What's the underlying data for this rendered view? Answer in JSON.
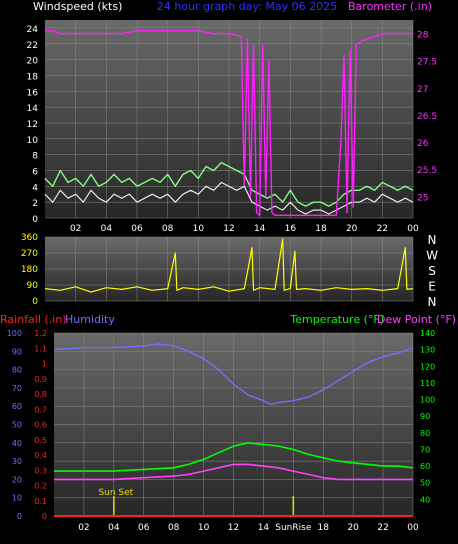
{
  "header": {
    "left_title": "Windspeed (kts)",
    "center_title": "24 hour graph day:  May 06 2025",
    "right_title": "Barometer (.in)"
  },
  "colors": {
    "background": "#000000",
    "plot_bg_top": "#606060",
    "plot_bg_bottom": "#202020",
    "wind_speed": "#e8e8e8",
    "wind_gust": "#80ff80",
    "barometer": "#ff20ff",
    "wind_dir": "#ffff00",
    "rainfall": "#ff2020",
    "humidity": "#7070ff",
    "temperature": "#00ff00",
    "dew_point": "#ff40ff",
    "sun_marker": "#e0e000"
  },
  "chart_data": [
    {
      "type": "line",
      "name": "wind-barometer",
      "x_ticks": [
        "02",
        "04",
        "06",
        "08",
        "10",
        "12",
        "14",
        "16",
        "18",
        "20",
        "22",
        "00"
      ],
      "left_axis": {
        "label": "Windspeed (kts)",
        "ticks": [
          0,
          2,
          4,
          6,
          8,
          10,
          12,
          14,
          16,
          18,
          20,
          22,
          24
        ],
        "ylim": [
          0,
          25
        ]
      },
      "right_axis": {
        "label": "Barometer (.in)",
        "ticks": [
          "25",
          "25.5",
          "26",
          "26.5",
          "27",
          "27.5",
          "28"
        ],
        "ylim": [
          24.6,
          28.25
        ]
      },
      "series": [
        {
          "key": "wind_speed",
          "points": [
            [
              0,
              3
            ],
            [
              0.5,
              2
            ],
            [
              1,
              3.5
            ],
            [
              1.5,
              2.5
            ],
            [
              2,
              3
            ],
            [
              2.5,
              2
            ],
            [
              3,
              3.5
            ],
            [
              3.5,
              2.5
            ],
            [
              4,
              2
            ],
            [
              4.5,
              3
            ],
            [
              5,
              2.5
            ],
            [
              5.5,
              3
            ],
            [
              6,
              2
            ],
            [
              6.5,
              2.5
            ],
            [
              7,
              3
            ],
            [
              7.5,
              2.5
            ],
            [
              8,
              3
            ],
            [
              8.5,
              2
            ],
            [
              9,
              3
            ],
            [
              9.5,
              3.5
            ],
            [
              10,
              3
            ],
            [
              10.5,
              4
            ],
            [
              11,
              3.5
            ],
            [
              11.5,
              4.5
            ],
            [
              12,
              4
            ],
            [
              12.5,
              3.5
            ],
            [
              13,
              4
            ],
            [
              13.5,
              2
            ],
            [
              14,
              1.5
            ],
            [
              14.5,
              1
            ],
            [
              15,
              1.5
            ],
            [
              15.5,
              1
            ],
            [
              16,
              2
            ],
            [
              16.5,
              1
            ],
            [
              17,
              0.5
            ],
            [
              17.5,
              1
            ],
            [
              18,
              1
            ],
            [
              18.5,
              0.5
            ],
            [
              19,
              1
            ],
            [
              19.5,
              1.5
            ],
            [
              20,
              2
            ],
            [
              20.5,
              2
            ],
            [
              21,
              2.5
            ],
            [
              21.5,
              2
            ],
            [
              22,
              3
            ],
            [
              22.5,
              2.5
            ],
            [
              23,
              2
            ],
            [
              23.5,
              2.5
            ],
            [
              24,
              2
            ]
          ]
        },
        {
          "key": "wind_gust",
          "points": [
            [
              0,
              5
            ],
            [
              0.5,
              4
            ],
            [
              1,
              6
            ],
            [
              1.5,
              4.5
            ],
            [
              2,
              5
            ],
            [
              2.5,
              4
            ],
            [
              3,
              5.5
            ],
            [
              3.5,
              4
            ],
            [
              4,
              4.5
            ],
            [
              4.5,
              5.5
            ],
            [
              5,
              4.5
            ],
            [
              5.5,
              5
            ],
            [
              6,
              4
            ],
            [
              6.5,
              4.5
            ],
            [
              7,
              5
            ],
            [
              7.5,
              4.5
            ],
            [
              8,
              5.5
            ],
            [
              8.5,
              4
            ],
            [
              9,
              5.5
            ],
            [
              9.5,
              6
            ],
            [
              10,
              5
            ],
            [
              10.5,
              6.5
            ],
            [
              11,
              6
            ],
            [
              11.5,
              7
            ],
            [
              12,
              6.5
            ],
            [
              12.5,
              6
            ],
            [
              13,
              5.5
            ],
            [
              13.5,
              3.5
            ],
            [
              14,
              3
            ],
            [
              14.5,
              2.5
            ],
            [
              15,
              3
            ],
            [
              15.5,
              2
            ],
            [
              16,
              3.5
            ],
            [
              16.5,
              2
            ],
            [
              17,
              1.5
            ],
            [
              17.5,
              2
            ],
            [
              18,
              2
            ],
            [
              18.5,
              1.5
            ],
            [
              19,
              2
            ],
            [
              19.5,
              3
            ],
            [
              20,
              3.5
            ],
            [
              20.5,
              3.5
            ],
            [
              21,
              4
            ],
            [
              21.5,
              3.5
            ],
            [
              22,
              4.5
            ],
            [
              22.5,
              4
            ],
            [
              23,
              3.5
            ],
            [
              23.5,
              4
            ],
            [
              24,
              3.5
            ]
          ]
        },
        {
          "key": "barometer",
          "points": [
            [
              0,
              28.05
            ],
            [
              0.5,
              28.05
            ],
            [
              1,
              28.0
            ],
            [
              2,
              28.0
            ],
            [
              3,
              28.0
            ],
            [
              4,
              28.0
            ],
            [
              5,
              28.0
            ],
            [
              6,
              28.05
            ],
            [
              7,
              28.05
            ],
            [
              8,
              28.05
            ],
            [
              9,
              28.05
            ],
            [
              10,
              28.05
            ],
            [
              11,
              28.0
            ],
            [
              12,
              28.0
            ],
            [
              12.8,
              27.95
            ],
            [
              13,
              25.2
            ],
            [
              13.2,
              27.9
            ],
            [
              13.4,
              25.0
            ],
            [
              13.6,
              27.8
            ],
            [
              13.8,
              24.7
            ],
            [
              14,
              24.65
            ],
            [
              14.2,
              27.8
            ],
            [
              14.4,
              25.0
            ],
            [
              14.6,
              27.5
            ],
            [
              14.8,
              24.7
            ],
            [
              15,
              24.65
            ],
            [
              19,
              24.65
            ],
            [
              19.3,
              26.0
            ],
            [
              19.5,
              27.6
            ],
            [
              19.7,
              24.7
            ],
            [
              19.9,
              27.7
            ],
            [
              20.1,
              24.8
            ],
            [
              20.3,
              27.8
            ],
            [
              20.6,
              27.85
            ],
            [
              21,
              27.9
            ],
            [
              21.5,
              27.95
            ],
            [
              22,
              28.0
            ],
            [
              23,
              28.0
            ],
            [
              24,
              28.0
            ]
          ]
        }
      ]
    },
    {
      "type": "line",
      "name": "wind-direction",
      "x_ticks": [
        "02",
        "04",
        "06",
        "08",
        "10",
        "12",
        "14",
        "16",
        "18",
        "20",
        "22",
        "00"
      ],
      "left_axis": {
        "ticks": [
          0,
          90,
          180,
          270,
          360
        ],
        "ylim": [
          0,
          360
        ]
      },
      "right_axis": {
        "compass": [
          "N",
          "W",
          "S",
          "E",
          "N"
        ]
      },
      "series": [
        {
          "key": "wind_dir",
          "points": [
            [
              0,
              70
            ],
            [
              1,
              60
            ],
            [
              2,
              80
            ],
            [
              3,
              50
            ],
            [
              4,
              75
            ],
            [
              5,
              65
            ],
            [
              6,
              80
            ],
            [
              7,
              60
            ],
            [
              8,
              70
            ],
            [
              8.5,
              270
            ],
            [
              8.6,
              60
            ],
            [
              9,
              75
            ],
            [
              10,
              65
            ],
            [
              11,
              80
            ],
            [
              12,
              55
            ],
            [
              13,
              70
            ],
            [
              13.5,
              300
            ],
            [
              13.6,
              60
            ],
            [
              14,
              75
            ],
            [
              15,
              65
            ],
            [
              15.5,
              350
            ],
            [
              15.6,
              60
            ],
            [
              16,
              70
            ],
            [
              16.3,
              280
            ],
            [
              16.4,
              65
            ],
            [
              17,
              70
            ],
            [
              18,
              60
            ],
            [
              19,
              75
            ],
            [
              20,
              65
            ],
            [
              21,
              70
            ],
            [
              22,
              60
            ],
            [
              23,
              70
            ],
            [
              23.5,
              300
            ],
            [
              23.6,
              65
            ],
            [
              24,
              70
            ]
          ]
        }
      ]
    },
    {
      "type": "line",
      "name": "rain-humidity-temperature",
      "x_ticks": [
        "02",
        "04",
        "06",
        "08",
        "10",
        "12",
        "14",
        "SunRise",
        "18",
        "20",
        "22",
        "00"
      ],
      "left_labels": {
        "rainfall": "Rainfall (.in)",
        "humidity": "Humidity"
      },
      "right_labels": {
        "temperature": "Temperature (°F)",
        "dew_point": "Dew Point (°F)"
      },
      "rain_axis": {
        "ticks": [
          "0",
          "0.1",
          "0.2",
          "0.3",
          "0.4",
          "0.5",
          "0.6",
          "0.7",
          "0.8",
          "0.9",
          "1",
          "1.1",
          "1.2"
        ],
        "ylim": [
          0,
          1.2
        ]
      },
      "humidity_axis": {
        "ticks": [
          0,
          10,
          20,
          30,
          40,
          50,
          60,
          70,
          80,
          90,
          100
        ],
        "ylim": [
          0,
          100
        ]
      },
      "temp_axis": {
        "ticks": [
          40,
          50,
          60,
          70,
          80,
          90,
          100,
          110,
          120,
          130,
          140
        ],
        "ylim": [
          30,
          140
        ]
      },
      "annotations": [
        {
          "text": "Sun Set",
          "x": 4
        },
        {
          "text": "SunRise",
          "x": 16
        }
      ],
      "series": [
        {
          "key": "rainfall",
          "points": [
            [
              0,
              0
            ],
            [
              24,
              0
            ]
          ]
        },
        {
          "key": "humidity",
          "points": [
            [
              0,
              91
            ],
            [
              2,
              92
            ],
            [
              4,
              92
            ],
            [
              6,
              93
            ],
            [
              7,
              94
            ],
            [
              8,
              93
            ],
            [
              9,
              90
            ],
            [
              10,
              86
            ],
            [
              11,
              80
            ],
            [
              12,
              72
            ],
            [
              13,
              66
            ],
            [
              14,
              63
            ],
            [
              14.5,
              61
            ],
            [
              15,
              62
            ],
            [
              16,
              63
            ],
            [
              17,
              65
            ],
            [
              18,
              69
            ],
            [
              19,
              74
            ],
            [
              20,
              79
            ],
            [
              21,
              84
            ],
            [
              22,
              87
            ],
            [
              23,
              89
            ],
            [
              24,
              92
            ]
          ]
        },
        {
          "key": "temperature",
          "points": [
            [
              0,
              57
            ],
            [
              2,
              57
            ],
            [
              4,
              57
            ],
            [
              6,
              58
            ],
            [
              8,
              59
            ],
            [
              9,
              61
            ],
            [
              10,
              64
            ],
            [
              11,
              68
            ],
            [
              12,
              72
            ],
            [
              13,
              74
            ],
            [
              14,
              73
            ],
            [
              15,
              72
            ],
            [
              16,
              70
            ],
            [
              17,
              67
            ],
            [
              18,
              65
            ],
            [
              19,
              63
            ],
            [
              20,
              62
            ],
            [
              21,
              61
            ],
            [
              22,
              60
            ],
            [
              23,
              60
            ],
            [
              24,
              59
            ]
          ]
        },
        {
          "key": "dew_point",
          "points": [
            [
              0,
              52
            ],
            [
              2,
              52
            ],
            [
              4,
              52
            ],
            [
              6,
              53
            ],
            [
              8,
              54
            ],
            [
              9,
              55
            ],
            [
              10,
              57
            ],
            [
              11,
              59
            ],
            [
              12,
              61
            ],
            [
              13,
              61
            ],
            [
              14,
              60
            ],
            [
              15,
              59
            ],
            [
              16,
              57
            ],
            [
              17,
              55
            ],
            [
              18,
              53
            ],
            [
              19,
              52
            ],
            [
              20,
              52
            ],
            [
              21,
              52
            ],
            [
              22,
              52
            ],
            [
              23,
              52
            ],
            [
              24,
              52
            ]
          ]
        }
      ]
    }
  ]
}
